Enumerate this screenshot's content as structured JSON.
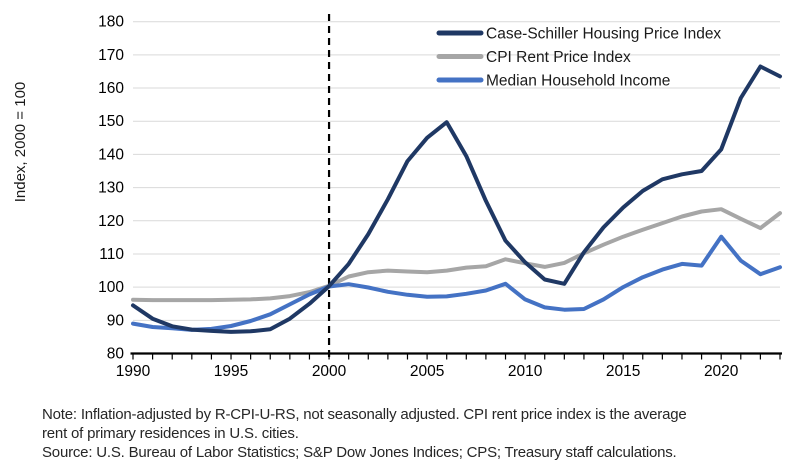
{
  "chart_data": {
    "type": "line",
    "title": "",
    "xlabel": "",
    "ylabel": "Index, 2000 = 100",
    "xlim": [
      1990,
      2023
    ],
    "ylim": [
      80,
      180
    ],
    "ytick_step": 10,
    "x_ticks_labeled": [
      1990,
      1995,
      2000,
      2005,
      2010,
      2015,
      2020
    ],
    "grid": "horizontal",
    "legend_position": "top-right-inside",
    "annotation_vline": {
      "x": 2000,
      "style": "dashed",
      "color": "#000000"
    },
    "draw_order": [
      1,
      2,
      0
    ],
    "x": [
      1990,
      1991,
      1992,
      1993,
      1994,
      1995,
      1996,
      1997,
      1998,
      1999,
      2000,
      2001,
      2002,
      2003,
      2004,
      2005,
      2006,
      2007,
      2008,
      2009,
      2010,
      2011,
      2012,
      2013,
      2014,
      2015,
      2016,
      2017,
      2018,
      2019,
      2020,
      2021,
      2022,
      2023
    ],
    "series": [
      {
        "name": "Case-Schiller Housing Price Index",
        "color": "#1f3864",
        "values": [
          94.5,
          90.5,
          88.2,
          87.2,
          86.8,
          86.5,
          86.7,
          87.3,
          90.5,
          95,
          100.3,
          107,
          116,
          126.5,
          138,
          145,
          149.7,
          139.5,
          126,
          114,
          107.5,
          102.3,
          101,
          110.5,
          118,
          124,
          129,
          132.5,
          134,
          135,
          141.5,
          157,
          166.5,
          163.5
        ]
      },
      {
        "name": "CPI Rent Price Index",
        "color": "#a6a6a6",
        "values": [
          96.2,
          96.1,
          96.1,
          96.1,
          96.1,
          96.2,
          96.3,
          96.6,
          97.3,
          98.5,
          100.4,
          103.2,
          104.5,
          105,
          104.7,
          104.5,
          105,
          105.9,
          106.3,
          108.4,
          107.2,
          106.1,
          107.3,
          110.2,
          112.8,
          115.2,
          117.3,
          119.3,
          121.3,
          122.8,
          123.5,
          120.6,
          117.8,
          122.3
        ]
      },
      {
        "name": "Median Household Income",
        "color": "#4472c4",
        "values": [
          89,
          88,
          87.6,
          87.1,
          87.4,
          88.3,
          89.8,
          91.8,
          94.8,
          97.8,
          100.2,
          100.9,
          99.9,
          98.6,
          97.7,
          97.1,
          97.2,
          98,
          99,
          101,
          96.3,
          93.9,
          93.2,
          93.4,
          96.3,
          100,
          103,
          105.3,
          107,
          106.5,
          115.2,
          108,
          103.9,
          106
        ]
      }
    ]
  },
  "notes": {
    "line1": "Note: Inflation-adjusted by R-CPI-U-RS, not seasonally adjusted. CPI rent price index is the average",
    "line2": "rent of primary residences in U.S. cities.",
    "source": "Source: U.S. Bureau of Labor Statistics; S&P Dow Jones Indices; CPS; Treasury staff calculations."
  },
  "colors": {
    "grid": "#d9d9d9",
    "axis": "#000000",
    "tick_text": "#000000",
    "legend_text": "#1a1a1a",
    "note_text": "#262626"
  }
}
